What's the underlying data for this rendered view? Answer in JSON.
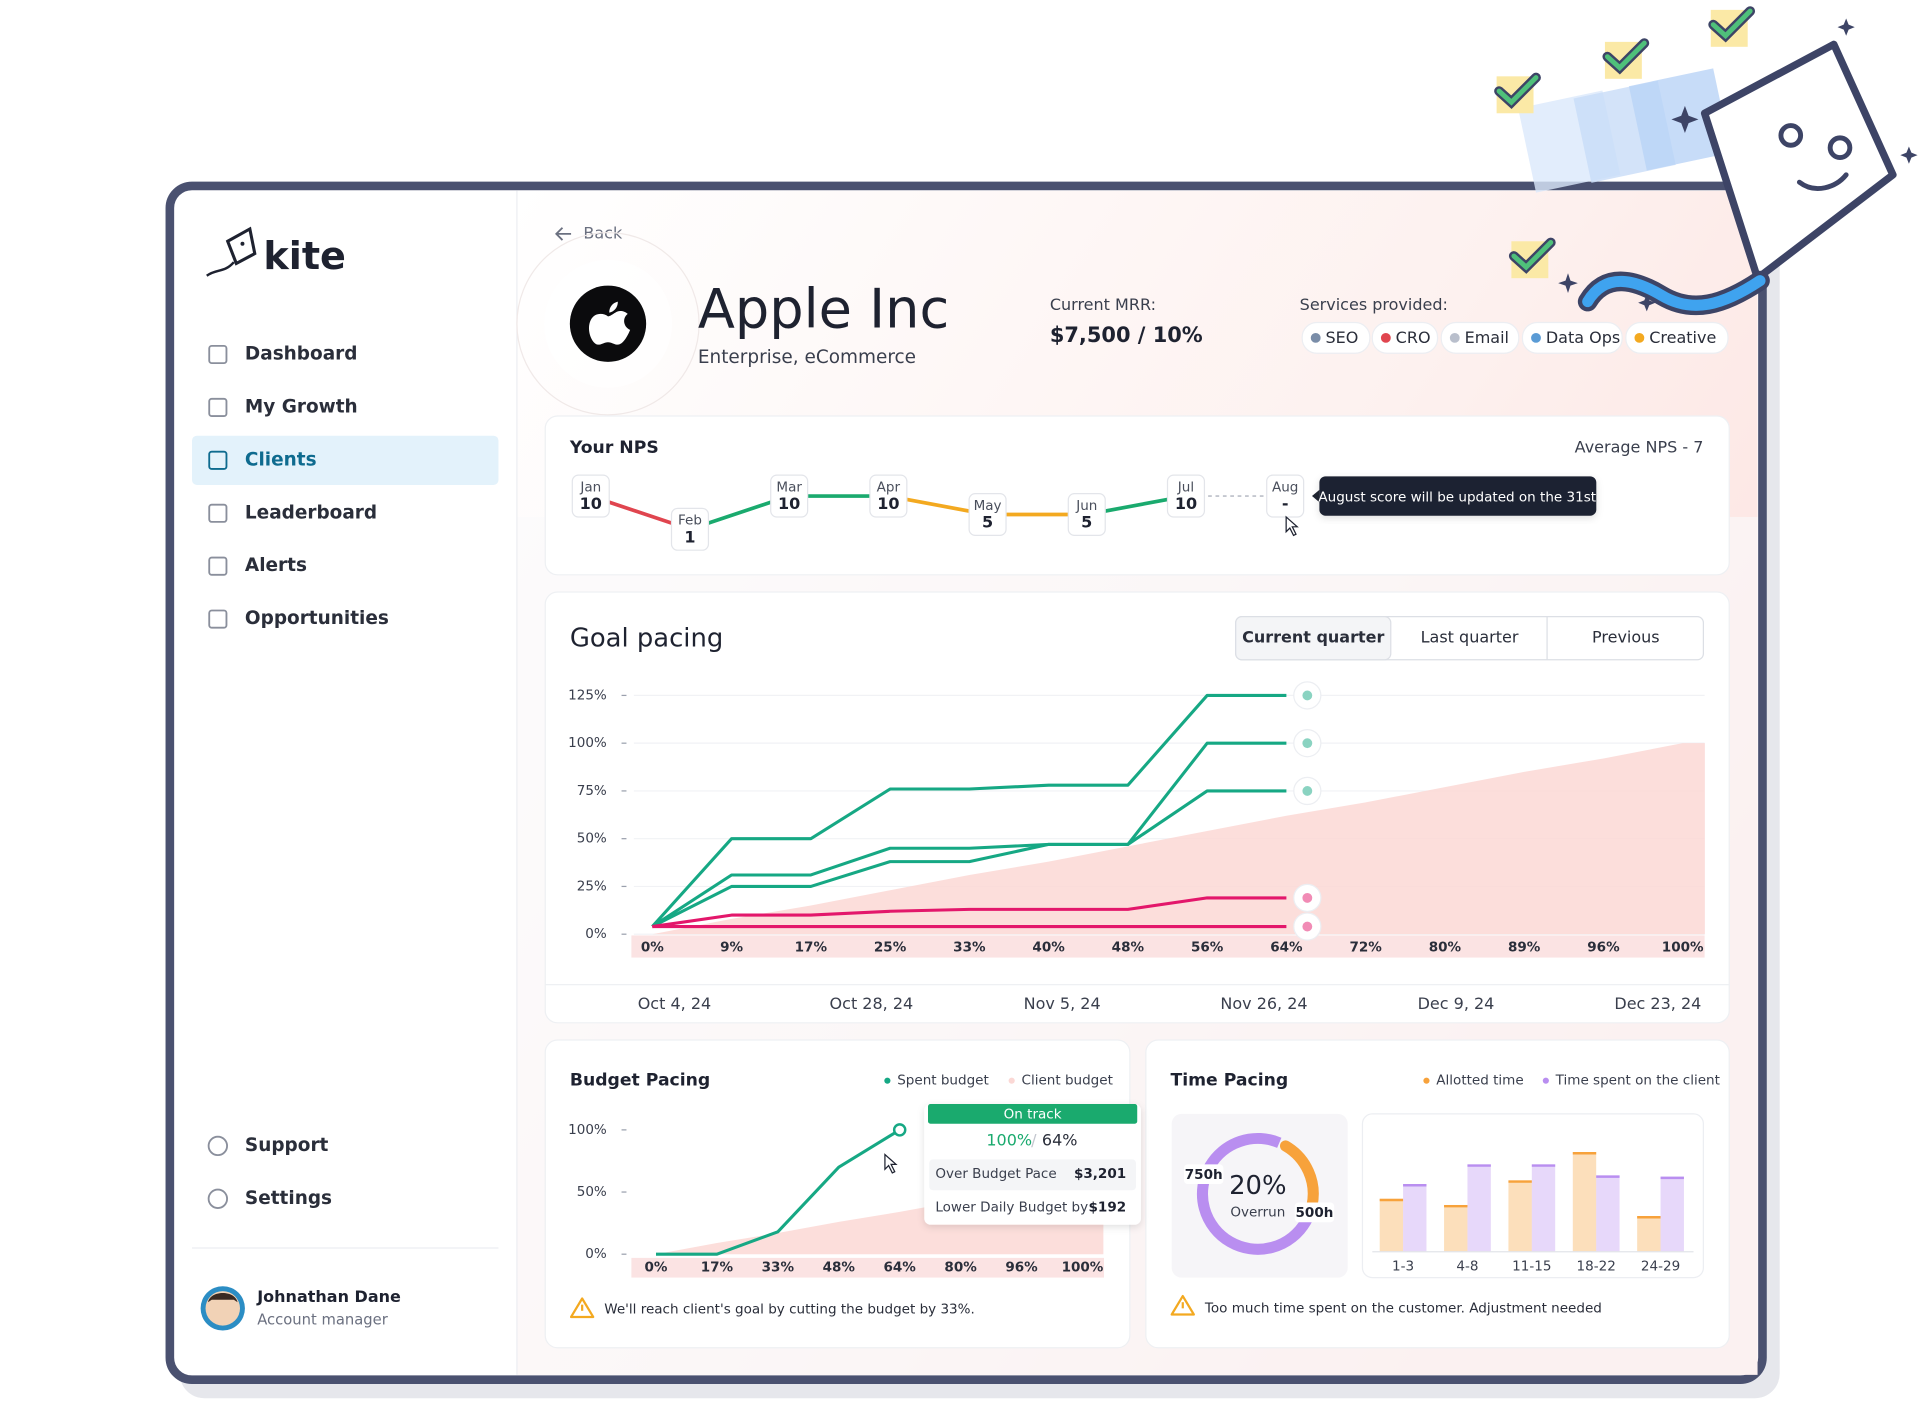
{
  "sidebar": {
    "logo": "kite",
    "nav": [
      "Dashboard",
      "My Growth",
      "Clients",
      "Leaderboard",
      "Alerts",
      "Opportunities"
    ],
    "footer_nav": [
      "Support",
      "Settings"
    ],
    "user": {
      "name": "Johnathan Dane",
      "role": "Account manager"
    }
  },
  "header": {
    "back": "Back",
    "client": "Apple Inc",
    "segment": "Enterprise, eCommerce",
    "mrr_label": "Current MRR:",
    "mrr": "$7,500 / 10%",
    "services_label": "Services provided:",
    "services": [
      "SEO",
      "CRO",
      "Email",
      "Data Ops",
      "Creative"
    ]
  },
  "nps": {
    "type": "line",
    "title": "Your NPS",
    "summary": "Average NPS - 7",
    "tooltip": "August score will be updated on the 31st",
    "categories": [
      "Jan",
      "Feb",
      "Mar",
      "Apr",
      "May",
      "Jun",
      "Jul",
      "Aug"
    ],
    "values": [
      10,
      1,
      10,
      10,
      5,
      5,
      10,
      null
    ],
    "value_labels": [
      "10",
      "1",
      "10",
      "10",
      "5",
      "5",
      "10",
      "-"
    ],
    "segment_colors": [
      "#e0454f",
      "#1aaa6e",
      "#1aaa6e",
      "#f3a920",
      "#f3a920",
      "#1aaa6e"
    ],
    "gap_color": "#c4c7cf"
  },
  "goal_pacing": {
    "type": "line",
    "title": "Goal pacing",
    "tabs": [
      "Current quarter",
      "Last quarter",
      "Previous"
    ],
    "categories": [
      "0%",
      "9%",
      "17%",
      "25%",
      "33%",
      "40%",
      "48%",
      "56%",
      "64%",
      "72%",
      "80%",
      "89%",
      "96%",
      "100%"
    ],
    "dates": [
      "Oct 4, 24",
      "Oct 28, 24",
      "Nov 5, 24",
      "Nov 26, 24",
      "Dec 9, 24",
      "Dec 23, 24"
    ],
    "ylim": [
      0,
      125
    ],
    "yticks": [
      {
        "value": 0,
        "label": "0%"
      },
      {
        "value": 25,
        "label": "25%"
      },
      {
        "value": 50,
        "label": "50%"
      },
      {
        "value": 75,
        "label": "75%"
      },
      {
        "value": 100,
        "label": "100%"
      },
      {
        "value": 125,
        "label": "125%"
      }
    ],
    "grid": true,
    "target": {
      "color": "#fbd8d5",
      "values": [
        0,
        8,
        15,
        23,
        31,
        38,
        46,
        54,
        62,
        69,
        77,
        85,
        92,
        100
      ]
    },
    "series": [
      {
        "color": "#16a884",
        "values": [
          4,
          50,
          50,
          76,
          76,
          78,
          78,
          125,
          125,
          null,
          null,
          null,
          null,
          null
        ]
      },
      {
        "color": "#16a884",
        "values": [
          4,
          31,
          31,
          45,
          45,
          47,
          47,
          100,
          100,
          null,
          null,
          null,
          null,
          null
        ]
      },
      {
        "color": "#16a884",
        "values": [
          4,
          25,
          25,
          38,
          38,
          47,
          47,
          75,
          75,
          null,
          null,
          null,
          null,
          null
        ]
      },
      {
        "color": "#e3176b",
        "values": [
          4,
          10,
          10,
          12,
          13,
          13,
          13,
          19,
          19,
          null,
          null,
          null,
          null,
          null
        ]
      },
      {
        "color": "#e3176b",
        "values": [
          4,
          4,
          4,
          4,
          4,
          4,
          4,
          4,
          4,
          null,
          null,
          null,
          null,
          null
        ]
      }
    ]
  },
  "budget_pacing": {
    "type": "line",
    "title": "Budget Pacing",
    "categories": [
      "0%",
      "17%",
      "33%",
      "48%",
      "64%",
      "80%",
      "96%",
      "100%"
    ],
    "ylim": [
      0,
      100
    ],
    "yticks": [
      {
        "value": 0,
        "label": "0%"
      },
      {
        "value": 50,
        "label": "50%"
      },
      {
        "value": 100,
        "label": "100%"
      }
    ],
    "series": [
      {
        "name": "Spent budget",
        "color": "#16a884",
        "values": [
          0,
          0,
          18,
          70,
          100,
          null,
          null,
          null
        ]
      },
      {
        "name": "Client budget",
        "color": "#fbd8d5",
        "values": [
          0,
          9,
          17,
          26,
          34,
          43,
          51,
          60
        ]
      }
    ],
    "tooltip": {
      "status": "On track",
      "spent": "100%",
      "separator": "/",
      "pace": "64%",
      "rows": [
        [
          "Over Budget Pace",
          "$3,201"
        ],
        [
          "Lower Daily Budget by",
          "$192"
        ]
      ]
    },
    "note": "We'll reach client's goal by cutting the budget by 33%."
  },
  "time_pacing": {
    "type": "bar",
    "title": "Time Pacing",
    "categories": [
      "1-3",
      "4-8",
      "11-15",
      "18-22",
      "24-29"
    ],
    "series": [
      {
        "name": "Allotted time",
        "color": "#f7a23b",
        "values": [
          43,
          38,
          58,
          81,
          29
        ]
      },
      {
        "name": "Time spent on the client",
        "color": "#b98ef0",
        "values": [
          55,
          71,
          71,
          62,
          61
        ]
      }
    ],
    "donut": {
      "value": 20,
      "value_label": "20%",
      "caption": "Overrun",
      "left_label": "750h",
      "right_label": "500h"
    },
    "note": "Too much time spent on the customer. Adjustment needed"
  }
}
